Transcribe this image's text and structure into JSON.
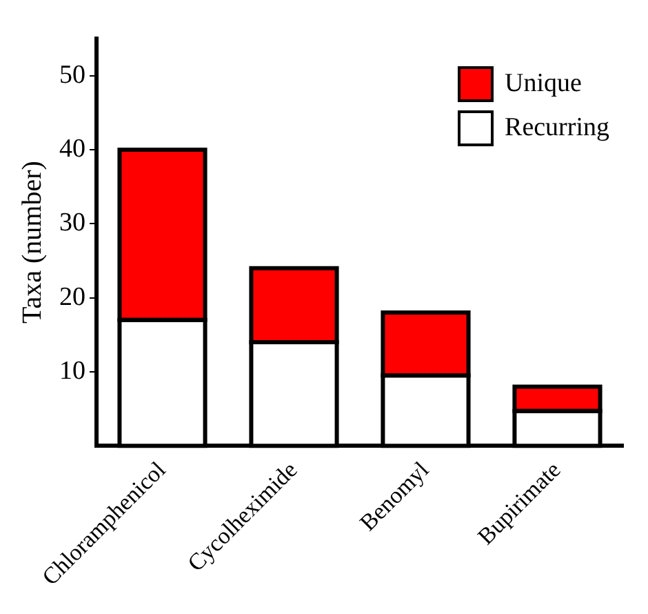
{
  "chart_data": {
    "type": "bar",
    "ylabel": "Taxa (number)",
    "categories": [
      "Chloramphenicol",
      "Cycolheximide",
      "Benomyl",
      "Bupirimate"
    ],
    "stacked": true,
    "ylim": [
      0,
      55
    ],
    "yticks": [
      10,
      20,
      30,
      40,
      50
    ],
    "grid": false,
    "legend": "top right",
    "series": [
      {
        "name": "Recurring",
        "color": "#ffffff",
        "values": [
          17,
          14,
          9.5,
          4.7
        ]
      },
      {
        "name": "Unique",
        "color": "#ff0000",
        "values": [
          23,
          10,
          8.5,
          3.3
        ]
      }
    ]
  }
}
